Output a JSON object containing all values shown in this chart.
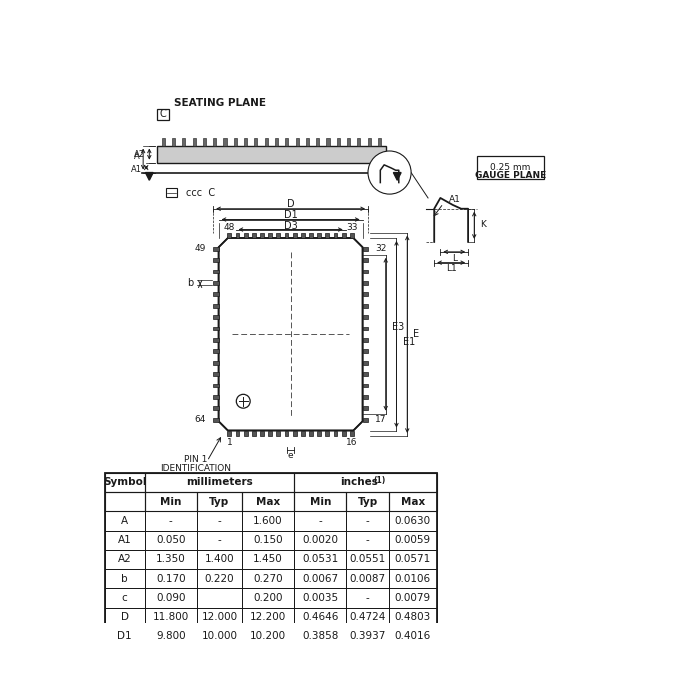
{
  "bg_color": "#ffffff",
  "line_color": "#1a1a1a",
  "table": {
    "rows": [
      [
        "A",
        "-",
        "-",
        "1.600",
        "-",
        "-",
        "0.0630"
      ],
      [
        "A1",
        "0.050",
        "-",
        "0.150",
        "0.0020",
        "-",
        "0.0059"
      ],
      [
        "A2",
        "1.350",
        "1.400",
        "1.450",
        "0.0531",
        "0.0551",
        "0.0571"
      ],
      [
        "b",
        "0.170",
        "0.220",
        "0.270",
        "0.0067",
        "0.0087",
        "0.0106"
      ],
      [
        "c",
        "0.090",
        "",
        "0.200",
        "0.0035",
        "-",
        "0.0079"
      ],
      [
        "D",
        "11.800",
        "12.000",
        "12.200",
        "0.4646",
        "0.4724",
        "0.4803"
      ],
      [
        "D1",
        "9.800",
        "10.000",
        "10.200",
        "0.3858",
        "0.3937",
        "0.4016"
      ]
    ]
  }
}
